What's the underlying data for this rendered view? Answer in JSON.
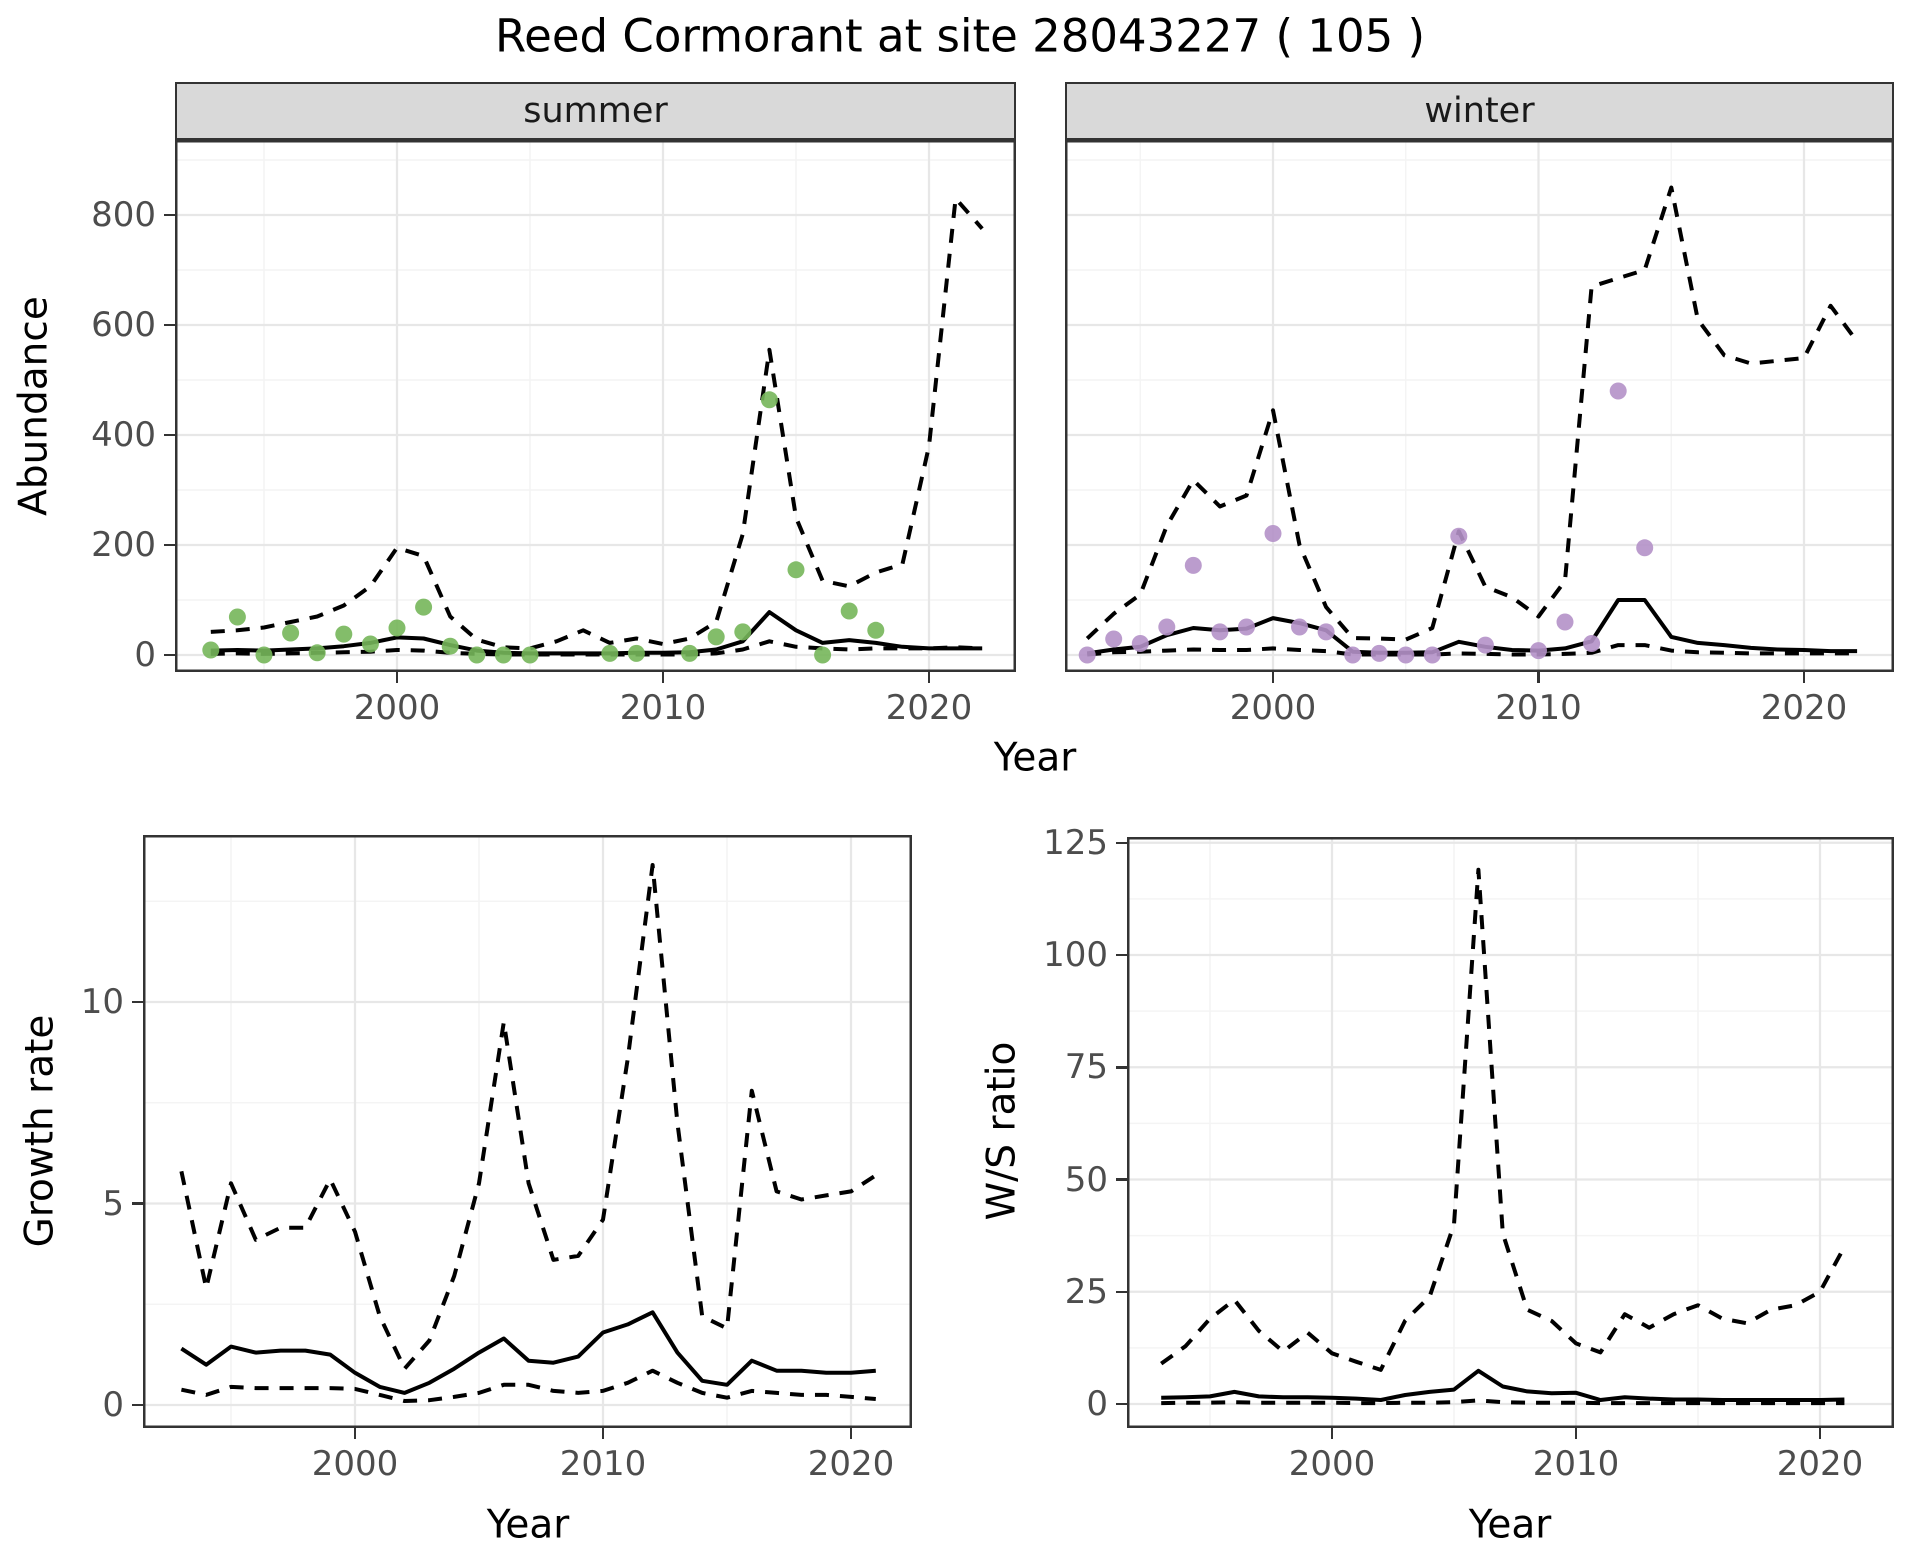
{
  "title": "Reed Cormorant at site 28043227 ( 105 )",
  "facets": {
    "summer": "summer",
    "winter": "winter"
  },
  "labels": {
    "abundance": "Abundance",
    "year": "Year",
    "growth_rate": "Growth rate",
    "ws_ratio": "W/S ratio"
  },
  "colors": {
    "summer_points": "#76b65a",
    "winter_points": "#b491c8",
    "line": "#000000",
    "strip_bg": "#d9d9d9",
    "grid_major": "#e7e7e7",
    "grid_minor": "#f4f4f4",
    "axis_text": "#4d4d4d",
    "panel_border": "#333333"
  },
  "chart_data": [
    {
      "panel": "summer",
      "type": "line",
      "title": "summer",
      "xlabel": "Year",
      "ylabel": "Abundance",
      "xlim": [
        1991.7,
        2023.3
      ],
      "ylim": [
        -31,
        936
      ],
      "x_ticks": [
        2000,
        2010,
        2020
      ],
      "x_minor": [
        1995,
        2005,
        2015
      ],
      "y_ticks": [
        0,
        200,
        400,
        600,
        800
      ],
      "y_minor": [
        100,
        300,
        500,
        700,
        900
      ],
      "point_color": "#76b65a",
      "observed": {
        "years": [
          1993,
          1994,
          1995,
          1996,
          1997,
          1998,
          1999,
          2000,
          2001,
          2002,
          2003,
          2004,
          2005,
          2008,
          2009,
          2011,
          2012,
          2013,
          2014,
          2015,
          2016,
          2017,
          2018
        ],
        "values": [
          9,
          69,
          0,
          40,
          4,
          38,
          20,
          49,
          87,
          16,
          0,
          0,
          0,
          3,
          3,
          3,
          33,
          42,
          464,
          155,
          0,
          80,
          45
        ]
      },
      "fit_mean": {
        "years": [
          1993,
          1994,
          1995,
          1996,
          1997,
          1998,
          1999,
          2000,
          2001,
          2002,
          2003,
          2004,
          2005,
          2006,
          2007,
          2008,
          2009,
          2010,
          2011,
          2012,
          2013,
          2014,
          2015,
          2016,
          2017,
          2018,
          2019,
          2020,
          2021,
          2022
        ],
        "values": [
          8,
          9,
          8,
          10,
          12,
          16,
          22,
          32,
          30,
          18,
          8,
          4,
          3,
          3,
          3,
          3,
          4,
          4,
          5,
          10,
          25,
          78,
          45,
          22,
          27,
          22,
          15,
          12,
          12,
          12
        ]
      },
      "ci_upper": {
        "years": [
          1993,
          1994,
          1995,
          1996,
          1997,
          1998,
          1999,
          2000,
          2001,
          2002,
          2003,
          2004,
          2005,
          2006,
          2007,
          2008,
          2009,
          2010,
          2011,
          2012,
          2013,
          2014,
          2015,
          2016,
          2017,
          2018,
          2019,
          2020,
          2021,
          2022
        ],
        "values": [
          42,
          45,
          50,
          60,
          70,
          90,
          125,
          195,
          180,
          70,
          28,
          14,
          12,
          25,
          45,
          22,
          30,
          20,
          30,
          60,
          220,
          555,
          250,
          135,
          125,
          150,
          165,
          380,
          830,
          775
        ]
      },
      "ci_lower": {
        "years": [
          1993,
          1994,
          1995,
          1996,
          1997,
          1998,
          1999,
          2000,
          2001,
          2002,
          2003,
          2004,
          2005,
          2006,
          2007,
          2008,
          2009,
          2010,
          2011,
          2012,
          2013,
          2014,
          2015,
          2016,
          2017,
          2018,
          2019,
          2020,
          2021,
          2022
        ],
        "values": [
          2,
          3,
          2,
          3,
          4,
          5,
          6,
          9,
          8,
          4,
          2,
          1,
          1,
          1,
          1,
          1,
          1,
          1,
          1,
          3,
          10,
          25,
          15,
          12,
          10,
          12,
          12,
          12,
          14,
          12
        ]
      }
    },
    {
      "panel": "winter",
      "type": "line",
      "title": "winter",
      "xlabel": "Year",
      "ylabel": "Abundance",
      "xlim": [
        1992.2,
        2023.4
      ],
      "ylim": [
        -31,
        936
      ],
      "x_ticks": [
        2000,
        2010,
        2020
      ],
      "x_minor": [
        1995,
        2005,
        2015
      ],
      "y_ticks": [
        0,
        200,
        400,
        600,
        800
      ],
      "y_minor": [
        100,
        300,
        500,
        700,
        900
      ],
      "point_color": "#b491c8",
      "observed": {
        "years": [
          1993,
          1994,
          1995,
          1996,
          1997,
          1998,
          1999,
          2000,
          2001,
          2002,
          2003,
          2004,
          2005,
          2006,
          2007,
          2008,
          2010,
          2011,
          2012,
          2013,
          2014
        ],
        "values": [
          0,
          29,
          21,
          51,
          163,
          42,
          51,
          221,
          51,
          42,
          0,
          3,
          0,
          0,
          216,
          18,
          8,
          60,
          21,
          480,
          195
        ]
      },
      "fit_mean": {
        "years": [
          1993,
          1994,
          1995,
          1996,
          1997,
          1998,
          1999,
          2000,
          2001,
          2002,
          2003,
          2004,
          2005,
          2006,
          2007,
          2008,
          2009,
          2010,
          2011,
          2012,
          2013,
          2014,
          2015,
          2016,
          2017,
          2018,
          2019,
          2020,
          2021,
          2022
        ],
        "values": [
          3,
          10,
          15,
          36,
          49,
          45,
          48,
          67,
          58,
          45,
          6,
          4,
          4,
          5,
          24,
          15,
          9,
          8,
          12,
          25,
          100,
          100,
          33,
          22,
          18,
          13,
          10,
          9,
          7,
          7
        ]
      },
      "ci_upper": {
        "years": [
          1993,
          1994,
          1995,
          1996,
          1997,
          1998,
          1999,
          2000,
          2001,
          2002,
          2003,
          2004,
          2005,
          2006,
          2007,
          2008,
          2009,
          2010,
          2011,
          2012,
          2013,
          2014,
          2015,
          2016,
          2017,
          2018,
          2019,
          2020,
          2021,
          2022
        ],
        "values": [
          30,
          75,
          110,
          235,
          318,
          270,
          290,
          445,
          200,
          87,
          31,
          30,
          28,
          49,
          225,
          124,
          105,
          70,
          135,
          670,
          685,
          700,
          850,
          610,
          545,
          530,
          535,
          540,
          635,
          570
        ]
      },
      "ci_lower": {
        "years": [
          1993,
          1994,
          1995,
          1996,
          1997,
          1998,
          1999,
          2000,
          2001,
          2002,
          2003,
          2004,
          2005,
          2006,
          2007,
          2008,
          2009,
          2010,
          2011,
          2012,
          2013,
          2014,
          2015,
          2016,
          2017,
          2018,
          2019,
          2020,
          2021,
          2022
        ],
        "values": [
          1,
          5,
          6,
          8,
          10,
          9,
          9,
          12,
          9,
          7,
          1,
          1,
          1,
          1,
          3,
          2,
          1,
          1,
          2,
          4,
          18,
          18,
          8,
          5,
          4,
          3,
          3,
          3,
          3,
          3
        ]
      }
    },
    {
      "panel": "growth_rate",
      "type": "line",
      "title": "",
      "xlabel": "Year",
      "ylabel": "Growth rate",
      "xlim": [
        1991.5,
        2022.9
      ],
      "ylim": [
        -0.57,
        14.15
      ],
      "x_ticks": [
        2000,
        2010,
        2020
      ],
      "x_minor": [
        1995,
        2005,
        2015
      ],
      "y_ticks": [
        0,
        5,
        10
      ],
      "y_minor": [
        2.5,
        7.5,
        12.5
      ],
      "fit_mean": {
        "years": [
          1993,
          1994,
          1995,
          1996,
          1997,
          1998,
          1999,
          2000,
          2001,
          2002,
          2003,
          2004,
          2005,
          2006,
          2007,
          2008,
          2009,
          2010,
          2011,
          2012,
          2013,
          2014,
          2015,
          2016,
          2017,
          2018,
          2019,
          2020,
          2021
        ],
        "values": [
          1.4,
          1.0,
          1.45,
          1.3,
          1.35,
          1.35,
          1.25,
          0.8,
          0.45,
          0.3,
          0.55,
          0.9,
          1.3,
          1.65,
          1.1,
          1.05,
          1.2,
          1.8,
          2.0,
          2.3,
          1.3,
          0.6,
          0.5,
          1.1,
          0.85,
          0.85,
          0.8,
          0.8,
          0.85
        ]
      },
      "ci_upper": {
        "years": [
          1993,
          1994,
          1995,
          1996,
          1997,
          1998,
          1999,
          2000,
          2001,
          2002,
          2003,
          2004,
          2005,
          2006,
          2007,
          2008,
          2009,
          2010,
          2011,
          2012,
          2013,
          2014,
          2015,
          2016,
          2017,
          2018,
          2019,
          2020,
          2021
        ],
        "values": [
          5.8,
          2.9,
          5.5,
          4.1,
          4.4,
          4.4,
          5.6,
          4.3,
          2.2,
          0.9,
          1.6,
          3.2,
          5.5,
          9.5,
          5.5,
          3.6,
          3.7,
          4.6,
          8.6,
          13.4,
          7.0,
          2.2,
          1.9,
          7.8,
          5.3,
          5.1,
          5.2,
          5.3,
          5.7
        ]
      },
      "ci_lower": {
        "years": [
          1993,
          1994,
          1995,
          1996,
          1997,
          1998,
          1999,
          2000,
          2001,
          2002,
          2003,
          2004,
          2005,
          2006,
          2007,
          2008,
          2009,
          2010,
          2011,
          2012,
          2013,
          2014,
          2015,
          2016,
          2017,
          2018,
          2019,
          2020,
          2021
        ],
        "values": [
          0.38,
          0.25,
          0.45,
          0.42,
          0.42,
          0.42,
          0.42,
          0.4,
          0.25,
          0.1,
          0.12,
          0.2,
          0.3,
          0.5,
          0.5,
          0.35,
          0.3,
          0.35,
          0.55,
          0.85,
          0.55,
          0.3,
          0.18,
          0.35,
          0.3,
          0.25,
          0.25,
          0.2,
          0.15
        ]
      }
    },
    {
      "panel": "ws_ratio",
      "type": "line",
      "title": "",
      "xlabel": "Year",
      "ylabel": "W/S ratio",
      "xlim": [
        1991.6,
        2023.0
      ],
      "ylim": [
        -5.3,
        126.3
      ],
      "x_ticks": [
        2000,
        2010,
        2020
      ],
      "x_minor": [
        1995,
        2005,
        2015
      ],
      "y_ticks": [
        0,
        25,
        50,
        75,
        100,
        125
      ],
      "y_minor": [
        12.5,
        37.5,
        62.5,
        87.5,
        112.5
      ],
      "fit_mean": {
        "years": [
          1993,
          1994,
          1995,
          1996,
          1997,
          1998,
          1999,
          2000,
          2001,
          2002,
          2003,
          2004,
          2005,
          2006,
          2007,
          2008,
          2009,
          2010,
          2011,
          2012,
          2013,
          2014,
          2015,
          2016,
          2017,
          2018,
          2019,
          2020,
          2021
        ],
        "values": [
          1.4,
          1.5,
          1.7,
          2.7,
          1.7,
          1.5,
          1.5,
          1.4,
          1.2,
          0.9,
          2.0,
          2.7,
          3.2,
          7.4,
          3.9,
          2.8,
          2.4,
          2.5,
          0.9,
          1.5,
          1.2,
          1.0,
          1.0,
          0.9,
          0.9,
          0.9,
          0.9,
          0.9,
          1.0
        ]
      },
      "ci_upper": {
        "years": [
          1993,
          1994,
          1995,
          1996,
          1997,
          1998,
          1999,
          2000,
          2001,
          2002,
          2003,
          2004,
          2005,
          2006,
          2007,
          2008,
          2009,
          2010,
          2011,
          2012,
          2013,
          2014,
          2015,
          2016,
          2017,
          2018,
          2019,
          2020,
          2021
        ],
        "values": [
          9,
          12.9,
          19,
          23.2,
          16.3,
          11.7,
          15.9,
          11.3,
          9.4,
          7.6,
          18.6,
          23.9,
          40,
          119,
          38,
          21,
          18.5,
          13.5,
          11.5,
          20,
          17,
          20,
          22,
          19,
          18,
          21,
          22,
          25,
          35
        ]
      },
      "ci_lower": {
        "years": [
          1993,
          1994,
          1995,
          1996,
          1997,
          1998,
          1999,
          2000,
          2001,
          2002,
          2003,
          2004,
          2005,
          2006,
          2007,
          2008,
          2009,
          2010,
          2011,
          2012,
          2013,
          2014,
          2015,
          2016,
          2017,
          2018,
          2019,
          2020,
          2021
        ],
        "values": [
          0.2,
          0.3,
          0.3,
          0.4,
          0.3,
          0.3,
          0.3,
          0.3,
          0.2,
          0.2,
          0.3,
          0.3,
          0.4,
          0.8,
          0.4,
          0.3,
          0.3,
          0.3,
          0.2,
          0.2,
          0.2,
          0.2,
          0.2,
          0.2,
          0.2,
          0.2,
          0.2,
          0.2,
          0.2
        ]
      }
    }
  ]
}
